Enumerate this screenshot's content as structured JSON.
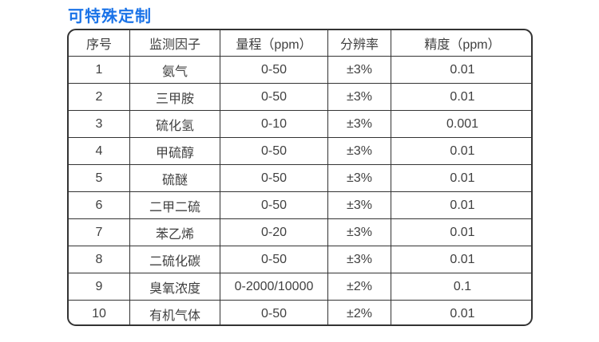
{
  "page": {
    "title": "可特殊定制"
  },
  "colors": {
    "title": "#1a73e8",
    "border": "#333333",
    "text": "#404040",
    "background": "#ffffff"
  },
  "table": {
    "headers": [
      "序号",
      "监测因子",
      "量程（ppm）",
      "分辨率",
      "精度（ppm）"
    ],
    "rows": [
      [
        "1",
        "氨气",
        "0-50",
        "±3%",
        "0.01"
      ],
      [
        "2",
        "三甲胺",
        "0-50",
        "±3%",
        "0.01"
      ],
      [
        "3",
        "硫化氢",
        "0-10",
        "±3%",
        "0.001"
      ],
      [
        "4",
        "甲硫醇",
        "0-50",
        "±3%",
        "0.01"
      ],
      [
        "5",
        "硫醚",
        "0-50",
        "±3%",
        "0.01"
      ],
      [
        "6",
        "二甲二硫",
        "0-50",
        "±3%",
        "0.01"
      ],
      [
        "7",
        "苯乙烯",
        "0-20",
        "±3%",
        "0.01"
      ],
      [
        "8",
        "二硫化碳",
        "0-50",
        "±3%",
        "0.01"
      ],
      [
        "9",
        "臭氧浓度",
        "0-2000/10000",
        "±2%",
        "0.1"
      ],
      [
        "10",
        "有机气体",
        "0-50",
        "±2%",
        "0.01"
      ]
    ]
  }
}
